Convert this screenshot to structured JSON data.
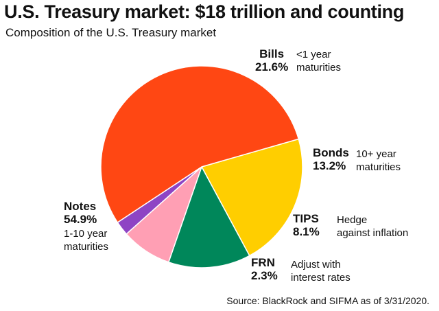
{
  "title": "U.S. Treasury market: $18 trillion and counting",
  "subtitle": "Composition of the U.S. Treasury market",
  "source": "Source: BlackRock and SIFMA as of 3/31/2020.",
  "labels": {
    "bills": {
      "name": "Bills",
      "pct": "21.6%",
      "desc1": "<1 year",
      "desc2": "maturities"
    },
    "bonds": {
      "name": "Bonds",
      "pct": "13.2%",
      "desc1": "10+ year",
      "desc2": "maturities"
    },
    "tips": {
      "name": "TIPS",
      "pct": "8.1%",
      "desc1": "Hedge",
      "desc2": "against inflation"
    },
    "frn": {
      "name": "FRN",
      "pct": "2.3%",
      "desc1": "Adjust with",
      "desc2": "interest rates"
    },
    "notes": {
      "name": "Notes",
      "pct": "54.9%",
      "desc1": "1-10 year",
      "desc2": "maturities"
    }
  },
  "chart_data": {
    "type": "pie",
    "title": "U.S. Treasury market: $18 trillion and counting",
    "subtitle": "Composition of the U.S. Treasury market",
    "slices": [
      {
        "key": "bills",
        "label": "Bills",
        "value": 21.6,
        "color": "#FFCE00"
      },
      {
        "key": "bonds",
        "label": "Bonds",
        "value": 13.2,
        "color": "#00875A"
      },
      {
        "key": "tips",
        "label": "TIPS",
        "value": 8.1,
        "color": "#FF9FB4"
      },
      {
        "key": "frn",
        "label": "FRN",
        "value": 2.3,
        "color": "#8E44C4"
      },
      {
        "key": "notes",
        "label": "Notes",
        "value": 54.9,
        "color": "#FF4713"
      }
    ],
    "start_angle_deg": -16,
    "direction": "clockwise"
  }
}
